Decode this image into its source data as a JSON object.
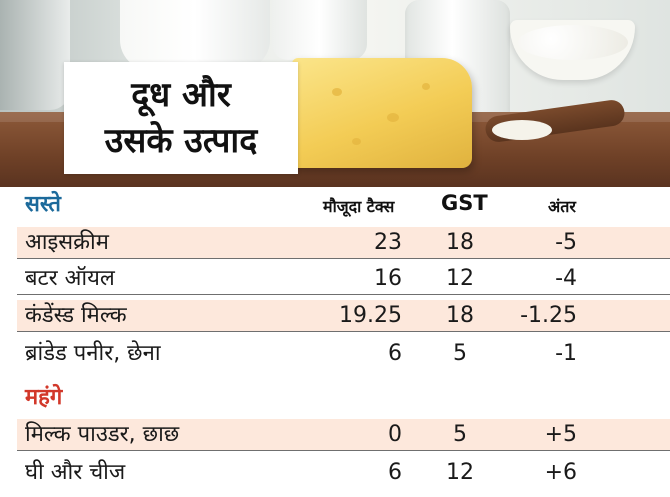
{
  "title": {
    "line1": "दूध और",
    "line2": "उसके उत्पाद"
  },
  "colors": {
    "sasta": "#1c6a9b",
    "mehnga": "#d2382a",
    "row_tint": "#fde8dc",
    "text": "#1a1a1a"
  },
  "chart_data": {
    "type": "table",
    "columns": [
      "मौजूदा टैक्स",
      "GST",
      "अंतर"
    ],
    "sections": [
      {
        "label": "सस्ते",
        "rows": [
          {
            "name": "आइसक्रीम",
            "values": [
              "23",
              "18",
              "-5"
            ]
          },
          {
            "name": "बटर ऑयल",
            "values": [
              "16",
              "12",
              "-4"
            ]
          },
          {
            "name": "कंडेंस्ड मिल्क",
            "values": [
              "19.25",
              "18",
              "-1.25"
            ]
          },
          {
            "name": "ब्रांडेड पनीर, छेना",
            "values": [
              "6",
              "5",
              "-1"
            ]
          }
        ]
      },
      {
        "label": "महंगे",
        "rows": [
          {
            "name": "मिल्क पाउडर, छाछ",
            "values": [
              "0",
              "5",
              "+5"
            ]
          },
          {
            "name": "घी और चीज",
            "values": [
              "6",
              "12",
              "+6"
            ]
          }
        ]
      }
    ]
  }
}
